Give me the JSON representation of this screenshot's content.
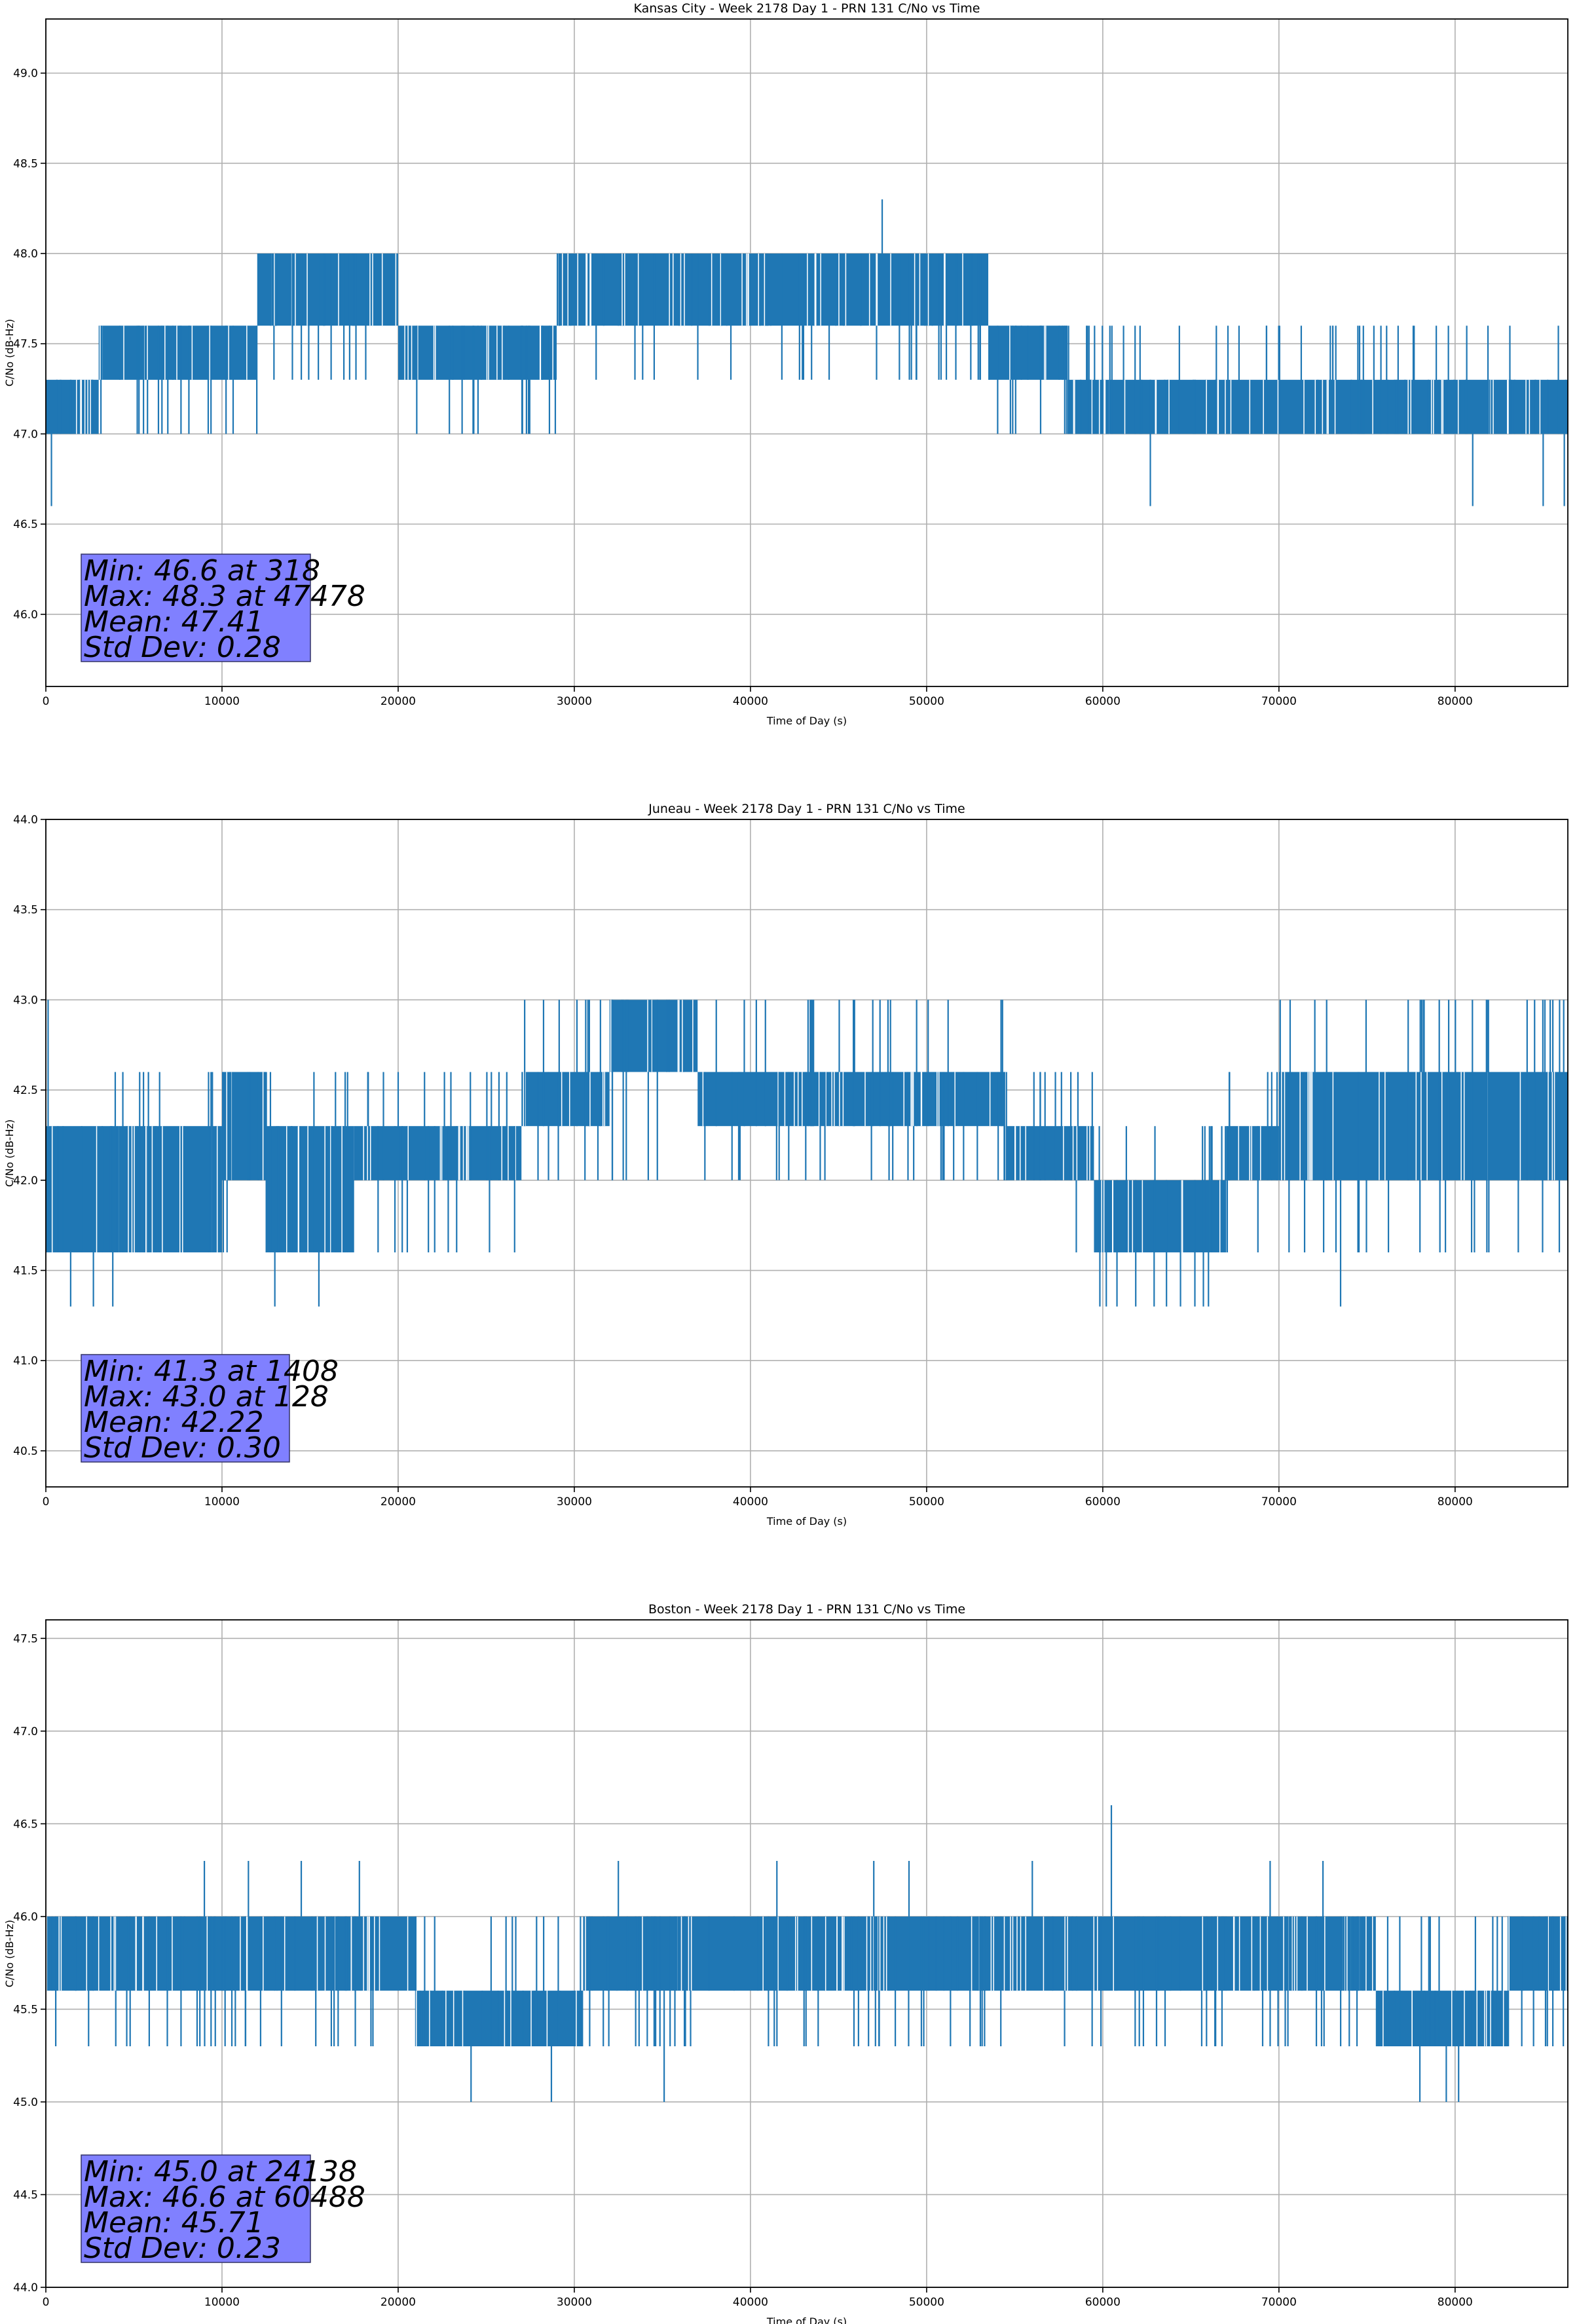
{
  "chart_data": [
    {
      "type": "line",
      "title": "Kansas City - Week 2178 Day 1 - PRN 131 C/No vs Time",
      "xlabel": "Time of Day (s)",
      "ylabel": "C/No (dB-Hz)",
      "xlim": [
        0,
        86400
      ],
      "ylim": [
        45.6,
        49.3
      ],
      "xticks": [
        0,
        10000,
        20000,
        30000,
        40000,
        50000,
        60000,
        70000,
        80000
      ],
      "yticks": [
        "46.0",
        "46.5",
        "47.0",
        "47.5",
        "48.0",
        "48.5",
        "49.0"
      ],
      "grid": true,
      "color": "#1f77b4",
      "bands": [
        {
          "x0": 0,
          "x1": 3000,
          "lo": 47.0,
          "hi": 47.3,
          "elo": 47.0,
          "ehi": 47.3
        },
        {
          "x0": 3000,
          "x1": 12000,
          "lo": 47.3,
          "hi": 47.6,
          "elo": 47.0,
          "ehi": 47.6
        },
        {
          "x0": 12000,
          "x1": 20000,
          "lo": 47.6,
          "hi": 48.0,
          "elo": 47.3,
          "ehi": 48.0
        },
        {
          "x0": 20000,
          "x1": 29000,
          "lo": 47.3,
          "hi": 47.6,
          "elo": 47.0,
          "ehi": 47.6
        },
        {
          "x0": 29000,
          "x1": 53500,
          "lo": 47.6,
          "hi": 48.0,
          "elo": 47.3,
          "ehi": 48.0
        },
        {
          "x0": 53500,
          "x1": 58000,
          "lo": 47.3,
          "hi": 47.6,
          "elo": 47.0,
          "ehi": 47.6
        },
        {
          "x0": 58000,
          "x1": 86400,
          "lo": 47.0,
          "hi": 47.3,
          "elo": 47.0,
          "ehi": 47.6
        }
      ],
      "spikes": [
        [
          318,
          46.6
        ],
        [
          47478,
          48.3
        ],
        [
          62700,
          46.6
        ],
        [
          81000,
          46.6
        ],
        [
          85000,
          46.6
        ],
        [
          86200,
          46.6
        ]
      ],
      "stats": [
        "Min: 46.6 at 318",
        "Max: 48.3 at 47478",
        "Mean: 47.41",
        "Std Dev: 0.28"
      ]
    },
    {
      "type": "line",
      "title": "Juneau - Week 2178 Day 1 - PRN 131 C/No vs Time",
      "xlabel": "Time of Day (s)",
      "ylabel": "C/No (dB-Hz)",
      "xlim": [
        0,
        86400
      ],
      "ylim": [
        40.3,
        44.0
      ],
      "xticks": [
        0,
        10000,
        20000,
        30000,
        40000,
        50000,
        60000,
        70000,
        80000
      ],
      "yticks": [
        "40.5",
        "41.0",
        "41.5",
        "42.0",
        "42.5",
        "43.0",
        "43.5",
        "44.0"
      ],
      "grid": true,
      "color": "#1f77b4",
      "bands": [
        {
          "x0": 0,
          "x1": 10000,
          "lo": 41.6,
          "hi": 42.3,
          "elo": 41.6,
          "ehi": 42.6
        },
        {
          "x0": 10000,
          "x1": 12500,
          "lo": 42.0,
          "hi": 42.6,
          "elo": 41.6,
          "ehi": 42.6
        },
        {
          "x0": 12500,
          "x1": 17500,
          "lo": 41.6,
          "hi": 42.3,
          "elo": 41.6,
          "ehi": 42.6
        },
        {
          "x0": 17500,
          "x1": 27000,
          "lo": 42.0,
          "hi": 42.3,
          "elo": 41.6,
          "ehi": 42.6
        },
        {
          "x0": 27000,
          "x1": 32000,
          "lo": 42.3,
          "hi": 42.6,
          "elo": 42.0,
          "ehi": 43.0
        },
        {
          "x0": 32000,
          "x1": 37000,
          "lo": 42.6,
          "hi": 43.0,
          "elo": 42.0,
          "ehi": 43.0
        },
        {
          "x0": 37000,
          "x1": 54500,
          "lo": 42.3,
          "hi": 42.6,
          "elo": 42.0,
          "ehi": 43.0
        },
        {
          "x0": 54500,
          "x1": 59500,
          "lo": 42.0,
          "hi": 42.3,
          "elo": 41.6,
          "ehi": 42.6
        },
        {
          "x0": 59500,
          "x1": 67000,
          "lo": 41.6,
          "hi": 42.0,
          "elo": 41.3,
          "ehi": 42.3
        },
        {
          "x0": 67000,
          "x1": 70000,
          "lo": 42.0,
          "hi": 42.3,
          "elo": 41.6,
          "ehi": 42.6
        },
        {
          "x0": 70000,
          "x1": 86400,
          "lo": 42.0,
          "hi": 42.6,
          "elo": 41.6,
          "ehi": 43.0
        }
      ],
      "spikes": [
        [
          128,
          43.0
        ],
        [
          1408,
          41.3
        ],
        [
          2700,
          41.3
        ],
        [
          3800,
          41.3
        ],
        [
          13000,
          41.3
        ],
        [
          15500,
          41.3
        ],
        [
          60200,
          41.3
        ],
        [
          66000,
          41.3
        ],
        [
          73500,
          41.3
        ]
      ],
      "stats": [
        "Min: 41.3 at 1408",
        "Max: 43.0 at 128",
        "Mean: 42.22",
        "Std Dev: 0.30"
      ]
    },
    {
      "type": "line",
      "title": "Boston - Week 2178 Day 1 - PRN 131 C/No vs Time",
      "xlabel": "Time of Day (s)",
      "ylabel": "C/No (dB-Hz)",
      "xlim": [
        0,
        86400
      ],
      "ylim": [
        44.0,
        47.6
      ],
      "xticks": [
        0,
        10000,
        20000,
        30000,
        40000,
        50000,
        60000,
        70000,
        80000
      ],
      "yticks": [
        "44.0",
        "44.5",
        "45.0",
        "45.5",
        "46.0",
        "46.5",
        "47.0",
        "47.5"
      ],
      "grid": true,
      "color": "#1f77b4",
      "bands": [
        {
          "x0": 0,
          "x1": 21000,
          "lo": 45.6,
          "hi": 46.0,
          "elo": 45.3,
          "ehi": 46.0
        },
        {
          "x0": 21000,
          "x1": 30500,
          "lo": 45.3,
          "hi": 45.6,
          "elo": 45.3,
          "ehi": 46.0
        },
        {
          "x0": 30500,
          "x1": 75500,
          "lo": 45.6,
          "hi": 46.0,
          "elo": 45.3,
          "ehi": 46.0
        },
        {
          "x0": 75500,
          "x1": 83000,
          "lo": 45.3,
          "hi": 45.6,
          "elo": 45.3,
          "ehi": 46.0
        },
        {
          "x0": 83000,
          "x1": 86400,
          "lo": 45.6,
          "hi": 46.0,
          "elo": 45.3,
          "ehi": 46.0
        }
      ],
      "spikes": [
        [
          60488,
          46.6
        ],
        [
          24138,
          45.0
        ],
        [
          28700,
          45.0
        ],
        [
          35100,
          45.0
        ],
        [
          78000,
          45.0
        ],
        [
          79500,
          45.0
        ],
        [
          80200,
          45.0
        ],
        [
          9000,
          46.3
        ],
        [
          11500,
          46.3
        ],
        [
          14500,
          46.3
        ],
        [
          17800,
          46.3
        ],
        [
          32500,
          46.3
        ],
        [
          41500,
          46.3
        ],
        [
          47000,
          46.3
        ],
        [
          49000,
          46.3
        ],
        [
          56000,
          46.3
        ],
        [
          69500,
          46.3
        ],
        [
          72500,
          46.3
        ]
      ],
      "stats": [
        "Min: 45.0 at 24138",
        "Max: 46.6 at 60488",
        "Mean: 45.71",
        "Std Dev: 0.23"
      ]
    }
  ]
}
